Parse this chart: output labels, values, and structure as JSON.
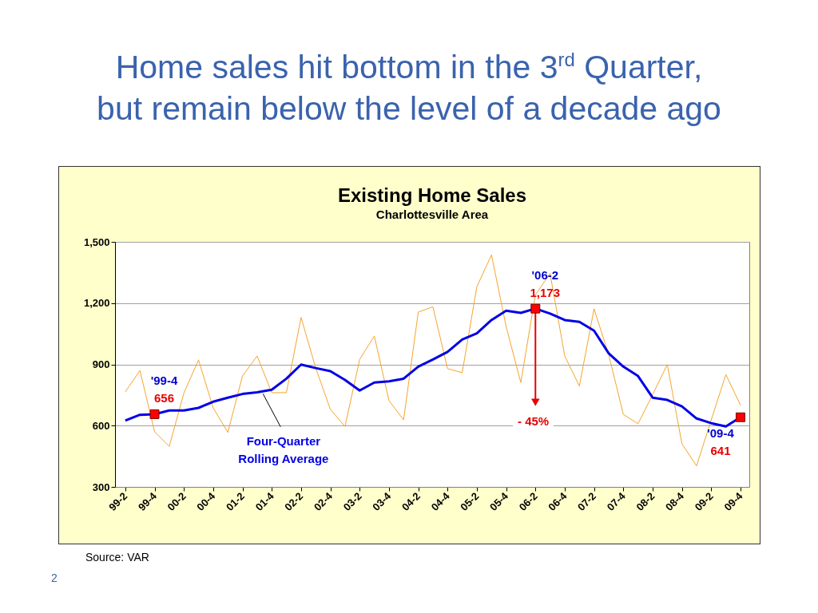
{
  "chart_data": {
    "type": "line",
    "title": "Home sales hit bottom in the 3$^{rd}$ Quarter, but remain below the level of a decade ago",
    "subtitle": "Existing Home Sales",
    "xlabel": "Charlottesville Area",
    "categories": [
      "99-2",
      null,
      "99-4",
      null,
      "00-2",
      null,
      "00-4",
      null,
      "01-2",
      null,
      "01-4",
      null,
      "02-2",
      null,
      "02-4",
      null,
      "03-2",
      null,
      "03-4",
      null,
      "04-2",
      null,
      "04-4",
      null,
      "05-2",
      null,
      "05-4",
      null,
      "06-2",
      null,
      "06-4",
      null,
      "07-2",
      null,
      "07-4",
      null,
      "08-2",
      null,
      "08-4",
      null,
      "09-2",
      null,
      "09-4"
    ],
    "series": [
      {
        "color": "#f5a42c",
        "values": [
          765,
          870,
          570,
          498,
          759,
          922,
          687,
          567,
          843,
          941,
          761,
          762,
          1130,
          882,
          680,
          596,
          924,
          1039,
          723,
          628,
          1156,
          1182,
          879,
          859,
          1280,
          1436,
          1085,
          811,
          1241,
          1345,
          941,
          794,
          1172,
          948,
          655,
          609,
          752,
          899,
          511,
          403,
          628,
          850,
          700
        ]
      },
      {
        "name": "Four-Quarter Rolling Average",
        "color": "#0000e6",
        "values": [
          625,
          653,
          656,
          674,
          674,
          687,
          717,
          737,
          755,
          763,
          776,
          830,
          899,
          882,
          867,
          824,
          772,
          811,
          817,
          830,
          889,
          924,
          961,
          1022,
          1052,
          1117,
          1163,
          1152,
          1173,
          1149,
          1117,
          1108,
          1065,
          954,
          889,
          843,
          737,
          726,
          694,
          635,
          612,
          596,
          641
        ]
      },
      {
        "type": "scatter",
        "marker": "square",
        "color": "#ff0000",
        "values": [
          null,
          null,
          656,
          null,
          null,
          null,
          null,
          null,
          null,
          null,
          null,
          null,
          null,
          null,
          null,
          null,
          null,
          null,
          null,
          null,
          null,
          null,
          null,
          null,
          null,
          null,
          null,
          null,
          1173,
          null,
          null,
          null,
          null,
          null,
          null,
          null,
          null,
          null,
          null,
          null,
          null,
          null,
          641
        ]
      }
    ],
    "ylim": [
      300,
      1500
    ],
    "yticks": [
      300,
      600,
      900,
      {
        "value": 1200,
        "label": "1,200"
      },
      {
        "value": 1500,
        "label": "1,500"
      }
    ],
    "grid": "y",
    "annotations": [
      {
        "text": "'99-4",
        "x": "99-4",
        "y": 656
      },
      {
        "text": "656",
        "x": "99-4",
        "y": 656
      },
      {
        "text": "'06-2",
        "x": "06-2",
        "y": 1173
      },
      {
        "text": "1,173",
        "x": "06-2",
        "y": 1173
      },
      {
        "text": "'09-4",
        "x": "09-4",
        "y": 641
      },
      {
        "text": "641",
        "x": "09-4",
        "y": 641
      },
      "- 45%",
      "Source:  VAR",
      "2"
    ]
  }
}
